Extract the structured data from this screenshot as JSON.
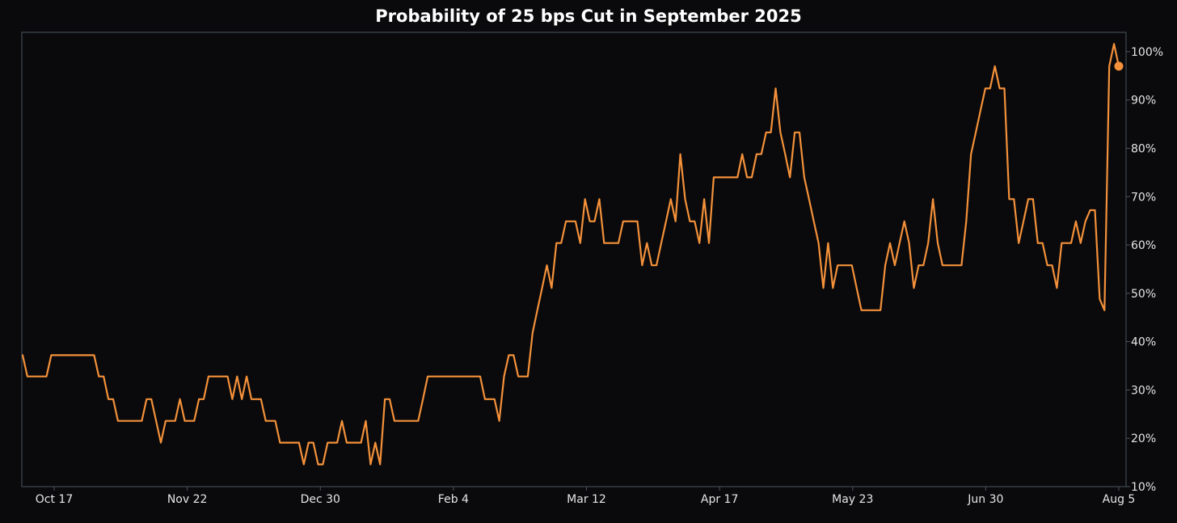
{
  "chart_data": {
    "type": "line",
    "title": "Probability of 25 bps Cut in September 2025",
    "xlabel": "",
    "ylabel": "",
    "x_ticks": [
      "Oct 17",
      "Nov 22",
      "Dec 30",
      "Feb 4",
      "Mar 12",
      "Apr 17",
      "May 23",
      "Jun 30",
      "Aug 5"
    ],
    "y_ticks": [
      "10%",
      "20%",
      "30%",
      "40%",
      "50%",
      "60%",
      "70%",
      "80%",
      "90%",
      "100%"
    ],
    "ylim": [
      10,
      104
    ],
    "y_axis_side": "right",
    "grid": false,
    "line_color": "#f4913a",
    "series": [
      {
        "values": [
          37.2,
          32.8,
          32.8,
          32.8,
          32.8,
          32.8,
          37.2,
          37.2,
          37.2,
          37.2,
          37.2,
          37.2,
          37.2,
          37.2,
          37.2,
          37.2,
          32.8,
          32.8,
          28.1,
          28.1,
          23.6,
          23.6,
          23.6,
          23.6,
          23.6,
          23.6,
          28.1,
          28.1,
          23.6,
          19.1,
          23.6,
          23.6,
          23.6,
          28.1,
          23.6,
          23.6,
          23.6,
          28.1,
          28.1,
          32.8,
          32.8,
          32.8,
          32.8,
          32.8,
          28.1,
          32.8,
          28.1,
          32.8,
          28.1,
          28.1,
          28.1,
          23.6,
          23.6,
          23.6,
          19.1,
          19.1,
          19.1,
          19.1,
          19.1,
          14.6,
          19.1,
          19.1,
          14.6,
          14.6,
          19.1,
          19.1,
          19.1,
          23.6,
          19.1,
          19.1,
          19.1,
          19.1,
          23.6,
          14.6,
          19.1,
          14.6,
          28.1,
          28.1,
          23.6,
          23.6,
          23.6,
          23.6,
          23.6,
          23.6,
          28.1,
          32.8,
          32.8,
          32.8,
          32.8,
          32.8,
          32.8,
          32.8,
          32.8,
          32.8,
          32.8,
          32.8,
          32.8,
          28.1,
          28.1,
          28.1,
          23.6,
          32.8,
          37.2,
          37.2,
          32.8,
          32.8,
          32.8,
          41.8,
          46.5,
          51.1,
          55.8,
          51.1,
          60.4,
          60.4,
          64.9,
          64.9,
          64.9,
          60.4,
          69.5,
          64.9,
          64.9,
          69.5,
          60.4,
          60.4,
          60.4,
          60.4,
          64.9,
          64.9,
          64.9,
          64.9,
          55.8,
          60.4,
          55.8,
          55.8,
          60.4,
          64.9,
          69.5,
          64.9,
          78.8,
          69.5,
          64.9,
          64.9,
          60.4,
          69.5,
          60.4,
          74.0,
          74.0,
          74.0,
          74.0,
          74.0,
          74.0,
          78.8,
          74.0,
          74.0,
          78.8,
          78.8,
          83.3,
          83.3,
          92.4,
          83.3,
          78.8,
          74.0,
          83.3,
          83.3,
          74.0,
          69.5,
          64.9,
          60.4,
          51.1,
          60.4,
          51.1,
          55.8,
          55.8,
          55.8,
          55.8,
          51.1,
          46.5,
          46.5,
          46.5,
          46.5,
          46.5,
          55.8,
          60.4,
          55.8,
          60.4,
          64.9,
          60.4,
          51.1,
          55.8,
          55.8,
          60.4,
          69.5,
          60.4,
          55.8,
          55.8,
          55.8,
          55.8,
          55.8,
          64.9,
          78.8,
          83.3,
          87.9,
          92.4,
          92.4,
          97.0,
          92.4,
          92.4,
          69.5,
          69.5,
          60.4,
          64.9,
          69.5,
          69.5,
          60.4,
          60.4,
          55.8,
          55.8,
          51.1,
          60.4,
          60.4,
          60.4,
          64.9,
          60.4,
          64.9,
          67.2,
          67.2,
          48.8,
          46.5,
          97.0,
          101.6,
          97.0
        ]
      }
    ],
    "last_point_marker": true
  }
}
